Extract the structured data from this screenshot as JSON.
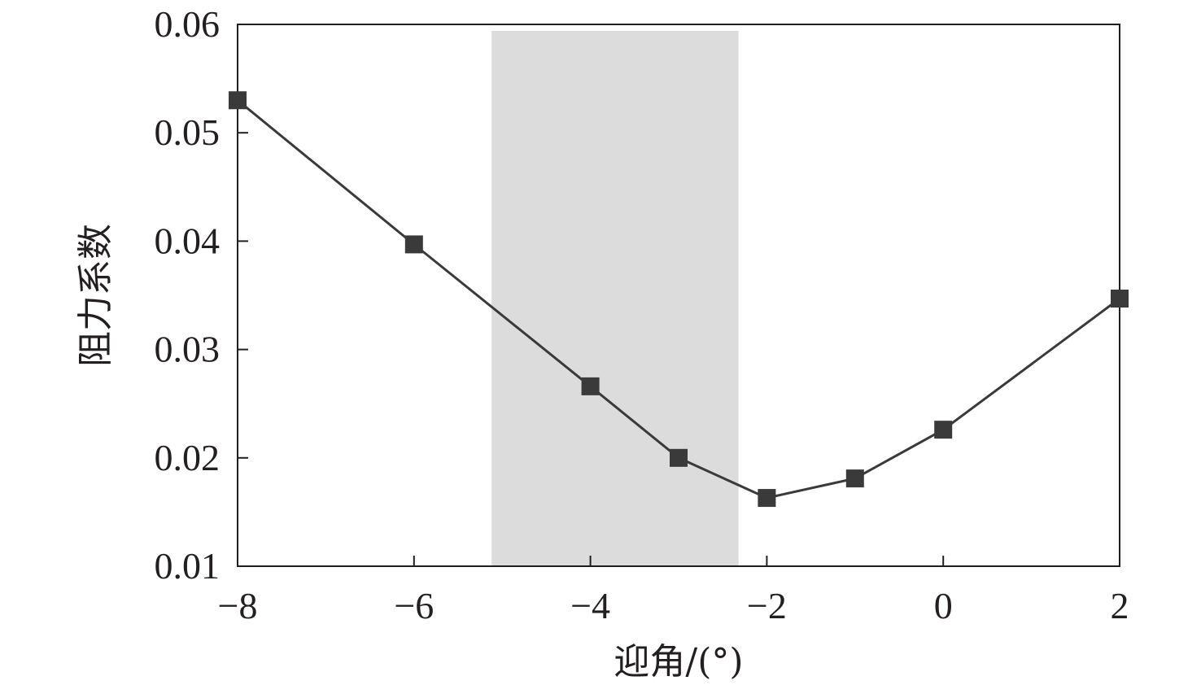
{
  "chart_data": {
    "type": "line",
    "title": "",
    "xlabel": "迎角/(°)",
    "ylabel": "阻力系数",
    "xlim": [
      -8,
      2
    ],
    "ylim": [
      0.01,
      0.06
    ],
    "xticks": [
      -8,
      -6,
      -4,
      -2,
      0,
      2
    ],
    "xtick_labels": [
      "−8",
      "−6",
      "−4",
      "−2",
      "0",
      "2"
    ],
    "yticks": [
      0.01,
      0.02,
      0.03,
      0.04,
      0.05,
      0.06
    ],
    "ytick_labels": [
      "0.01",
      "0.02",
      "0.03",
      "0.04",
      "0.05",
      "0.06"
    ],
    "grid": false,
    "shaded_region": {
      "x_start": -5.12,
      "x_end": -2.32
    },
    "series": [
      {
        "x": [
          -8,
          -6,
          -4,
          -3,
          -2,
          -1,
          0,
          2
        ],
        "y": [
          0.053,
          0.0397,
          0.0266,
          0.02,
          0.0163,
          0.0181,
          0.0226,
          0.0347
        ]
      }
    ],
    "colors": {
      "line": "#3a3a3a",
      "marker": "#3a3a3a",
      "axis": "#231f20",
      "shade": "#dcdcdc"
    }
  }
}
